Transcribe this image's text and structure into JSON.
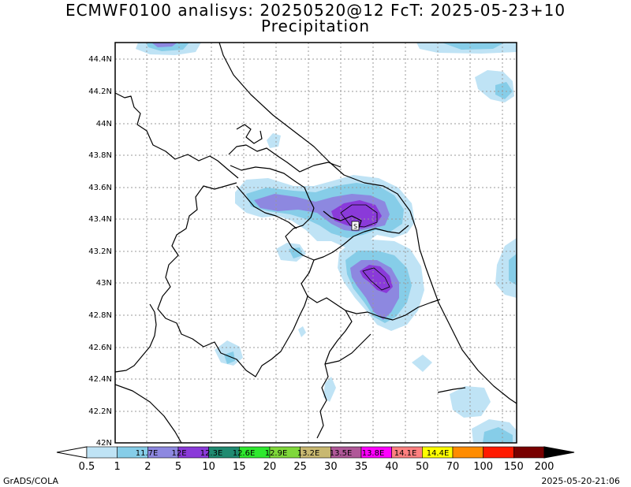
{
  "header": {
    "title_line1": "ECMWF0100 analisys: 20250520@12 FcT: 2025-05-23+10",
    "title_line2": "Precipitation"
  },
  "map": {
    "y_ticks": [
      "44.4N",
      "44.2N",
      "44N",
      "43.8N",
      "43.6N",
      "43.4N",
      "43.2N",
      "43N",
      "42.8N",
      "42.6N",
      "42.4N",
      "42.2N",
      "42N"
    ],
    "x_ticks": [
      "11.7E",
      "12E",
      "12.3E",
      "12.6E",
      "12.9E",
      "13.2E",
      "13.5E",
      "13.8E",
      "14.1E",
      "14.4E"
    ],
    "station_marker": "S",
    "colors": {
      "light_blue": "#bfe3f5",
      "blue": "#86cde8",
      "periwinkle": "#8d88e0",
      "purple": "#8a3ad9",
      "border": "#000000",
      "grid": "#999999"
    }
  },
  "colorbar": {
    "levels": [
      "0.5",
      "1",
      "2",
      "5",
      "10",
      "15",
      "20",
      "25",
      "30",
      "35",
      "40",
      "50",
      "70",
      "100",
      "150",
      "200"
    ],
    "colors": [
      "#bfe3f5",
      "#86cde8",
      "#8d88e0",
      "#8a3ad9",
      "#1f8a70",
      "#2ee82e",
      "#7fd83a",
      "#c8b870",
      "#b05898",
      "#ff00ff",
      "#ff8080",
      "#ffff00",
      "#ff8c00",
      "#ff1a00",
      "#780000"
    ]
  },
  "footer": {
    "credit": "GrADS/COLA",
    "timestamp": "2025-05-20-21:06"
  }
}
